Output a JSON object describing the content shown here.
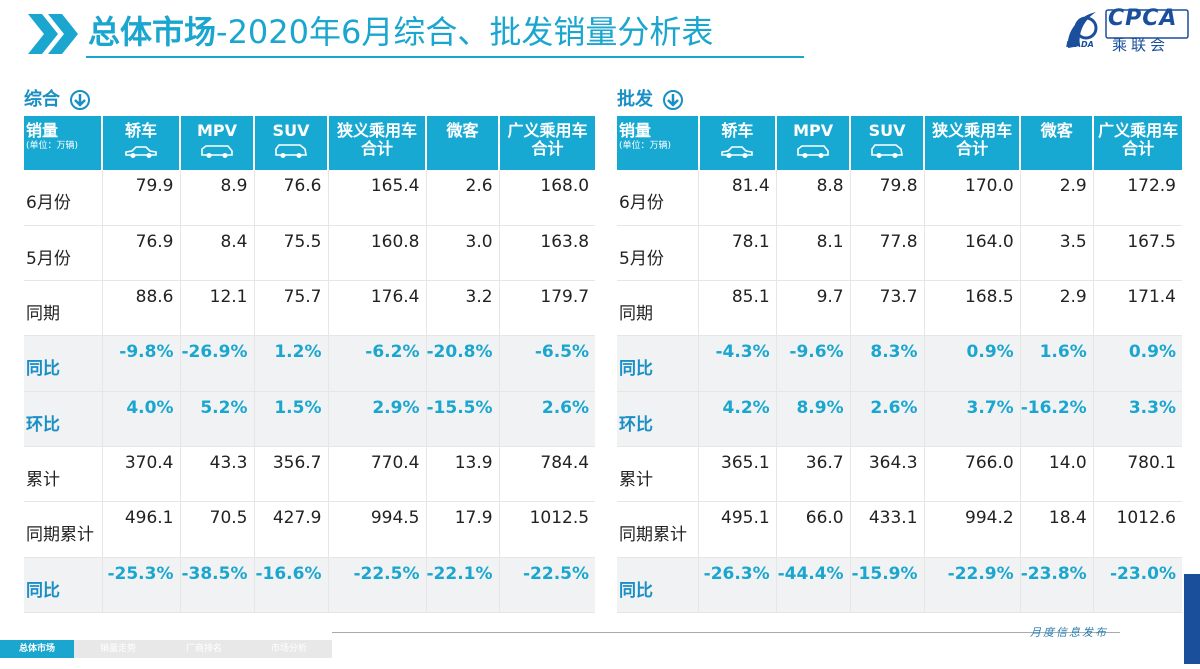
{
  "header": {
    "title_bold": "总体市场",
    "title_rest": "-2020年6月综合、批发销量分析表",
    "logo_text": "CPCA",
    "logo_sub": "乘联会",
    "logo_small": "ICADA",
    "accent_color": "#1aa6cf"
  },
  "columns": [
    {
      "label": "销量",
      "sub": "(单位：万辆)"
    },
    {
      "label": "轿车",
      "icon": "sedan-icon"
    },
    {
      "label": "MPV",
      "icon": "mpv-icon"
    },
    {
      "label": "SUV",
      "icon": "suv-icon"
    },
    {
      "label": "狭义乘用车",
      "label2": "合计"
    },
    {
      "label": "微客"
    },
    {
      "label": "广义乘用车",
      "label2": "合计"
    }
  ],
  "panels": {
    "combined": {
      "label": "综合",
      "rows": [
        {
          "label": "6月份",
          "values": [
            "79.9",
            "8.9",
            "76.6",
            "165.4",
            "2.6",
            "168.0"
          ]
        },
        {
          "label": "5月份",
          "values": [
            "76.9",
            "8.4",
            "75.5",
            "160.8",
            "3.0",
            "163.8"
          ]
        },
        {
          "label": "同期",
          "values": [
            "88.6",
            "12.1",
            "75.7",
            "176.4",
            "3.2",
            "179.7"
          ]
        },
        {
          "label": "同比",
          "values": [
            "-9.8%",
            "-26.9%",
            "1.2%",
            "-6.2%",
            "-20.8%",
            "-6.5%"
          ]
        },
        {
          "label": "环比",
          "values": [
            "4.0%",
            "5.2%",
            "1.5%",
            "2.9%",
            "-15.5%",
            "2.6%"
          ]
        },
        {
          "label": "累计",
          "values": [
            "370.4",
            "43.3",
            "356.7",
            "770.4",
            "13.9",
            "784.4"
          ]
        },
        {
          "label": "同期累计",
          "values": [
            "496.1",
            "70.5",
            "427.9",
            "994.5",
            "17.9",
            "1012.5"
          ]
        },
        {
          "label": "同比",
          "values": [
            "-25.3%",
            "-38.5%",
            "-16.6%",
            "-22.5%",
            "-22.1%",
            "-22.5%"
          ]
        }
      ]
    },
    "wholesale": {
      "label": "批发",
      "rows": [
        {
          "label": "6月份",
          "values": [
            "81.4",
            "8.8",
            "79.8",
            "170.0",
            "2.9",
            "172.9"
          ]
        },
        {
          "label": "5月份",
          "values": [
            "78.1",
            "8.1",
            "77.8",
            "164.0",
            "3.5",
            "167.5"
          ]
        },
        {
          "label": "同期",
          "values": [
            "85.1",
            "9.7",
            "73.7",
            "168.5",
            "2.9",
            "171.4"
          ]
        },
        {
          "label": "同比",
          "values": [
            "-4.3%",
            "-9.6%",
            "8.3%",
            "0.9%",
            "1.6%",
            "0.9%"
          ]
        },
        {
          "label": "环比",
          "values": [
            "4.2%",
            "8.9%",
            "2.6%",
            "3.7%",
            "-16.2%",
            "3.3%"
          ]
        },
        {
          "label": "累计",
          "values": [
            "365.1",
            "36.7",
            "364.3",
            "766.0",
            "14.0",
            "780.1"
          ]
        },
        {
          "label": "同期累计",
          "values": [
            "495.1",
            "66.0",
            "433.1",
            "994.2",
            "18.4",
            "1012.6"
          ]
        },
        {
          "label": "同比",
          "values": [
            "-26.3%",
            "-44.4%",
            "-15.9%",
            "-22.9%",
            "-23.8%",
            "-23.0%"
          ]
        }
      ]
    }
  },
  "footer": {
    "publish_text": "月度信息发布",
    "nav": [
      "总体市场",
      "销量走势",
      "厂商排名",
      "市场分析"
    ]
  }
}
